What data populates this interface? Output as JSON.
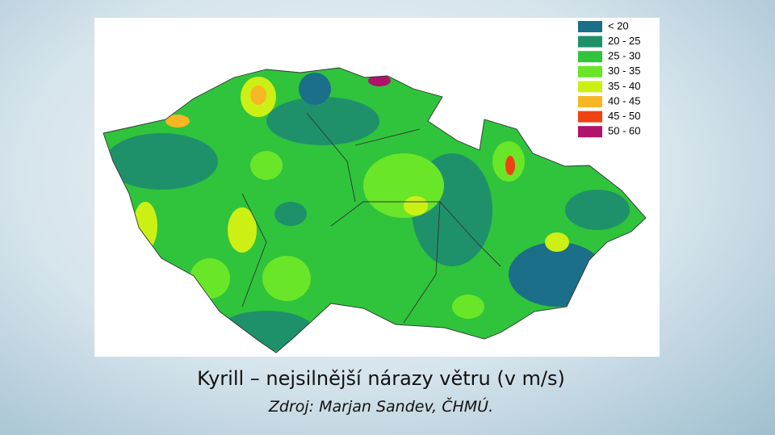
{
  "title": "Kyrill – nejsilnější nárazy větru (v m/s)",
  "subtitle": "Zdroj: Marjan Sandev, ČHMÚ.",
  "legend": {
    "items": [
      {
        "label": "< 20",
        "color": "#1b6f88"
      },
      {
        "label": "20 - 25",
        "color": "#1f916a"
      },
      {
        "label": "25 - 30",
        "color": "#2fc43c"
      },
      {
        "label": "30 - 35",
        "color": "#6ae628"
      },
      {
        "label": "35 - 40",
        "color": "#cdf014"
      },
      {
        "label": "40 - 45",
        "color": "#f7b623"
      },
      {
        "label": "45 - 50",
        "color": "#ef4212"
      },
      {
        "label": "50 - 60",
        "color": "#b0126c"
      }
    ]
  }
}
